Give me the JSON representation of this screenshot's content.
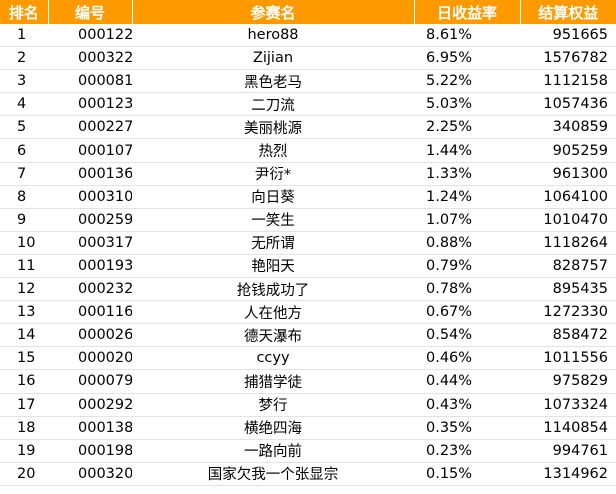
{
  "columns": [
    "排名",
    "编号",
    "参赛名",
    "日收益率",
    "结算权益"
  ],
  "rows": [
    {
      "rank": "1",
      "id": "000122",
      "name": "hero88",
      "rate": "8.61%",
      "equity": "951665"
    },
    {
      "rank": "2",
      "id": "000322",
      "name": "Zijian",
      "rate": "6.95%",
      "equity": "1576782"
    },
    {
      "rank": "3",
      "id": "000081",
      "name": "黑色老马",
      "rate": "5.22%",
      "equity": "1112158"
    },
    {
      "rank": "4",
      "id": "000123",
      "name": "二刀流",
      "rate": "5.03%",
      "equity": "1057436"
    },
    {
      "rank": "5",
      "id": "000227",
      "name": "美丽桃源",
      "rate": "2.25%",
      "equity": "340859"
    },
    {
      "rank": "6",
      "id": "000107",
      "name": "热烈",
      "rate": "1.44%",
      "equity": "905259"
    },
    {
      "rank": "7",
      "id": "000136",
      "name": "尹衍*",
      "rate": "1.33%",
      "equity": "961300"
    },
    {
      "rank": "8",
      "id": "000310",
      "name": "向日葵",
      "rate": "1.24%",
      "equity": "1064100"
    },
    {
      "rank": "9",
      "id": "000259",
      "name": "一笑生",
      "rate": "1.07%",
      "equity": "1010470"
    },
    {
      "rank": "10",
      "id": "000317",
      "name": "无所谓",
      "rate": "0.88%",
      "equity": "1118264"
    },
    {
      "rank": "11",
      "id": "000193",
      "name": "艳阳天",
      "rate": "0.79%",
      "equity": "828757"
    },
    {
      "rank": "12",
      "id": "000232",
      "name": "抢钱成功了",
      "rate": "0.78%",
      "equity": "895435"
    },
    {
      "rank": "13",
      "id": "000116",
      "name": "人在他方",
      "rate": "0.67%",
      "equity": "1272330"
    },
    {
      "rank": "14",
      "id": "000026",
      "name": "德天瀑布",
      "rate": "0.54%",
      "equity": "858472"
    },
    {
      "rank": "15",
      "id": "000020",
      "name": "ccyy",
      "rate": "0.46%",
      "equity": "1011556"
    },
    {
      "rank": "16",
      "id": "000079",
      "name": "捕猎学徒",
      "rate": "0.44%",
      "equity": "975829"
    },
    {
      "rank": "17",
      "id": "000292",
      "name": "梦行",
      "rate": "0.43%",
      "equity": "1073324"
    },
    {
      "rank": "18",
      "id": "000138",
      "name": "横绝四海",
      "rate": "0.35%",
      "equity": "1140854"
    },
    {
      "rank": "19",
      "id": "000198",
      "name": "一路向前",
      "rate": "0.23%",
      "equity": "994761"
    },
    {
      "rank": "20",
      "id": "000320",
      "name": "国家欠我一个张显宗",
      "rate": "0.15%",
      "equity": "1314962"
    }
  ],
  "colors": {
    "header_bg": "#ff9900",
    "header_text": "#ffffff",
    "row_divider": "#e3e3e3"
  }
}
